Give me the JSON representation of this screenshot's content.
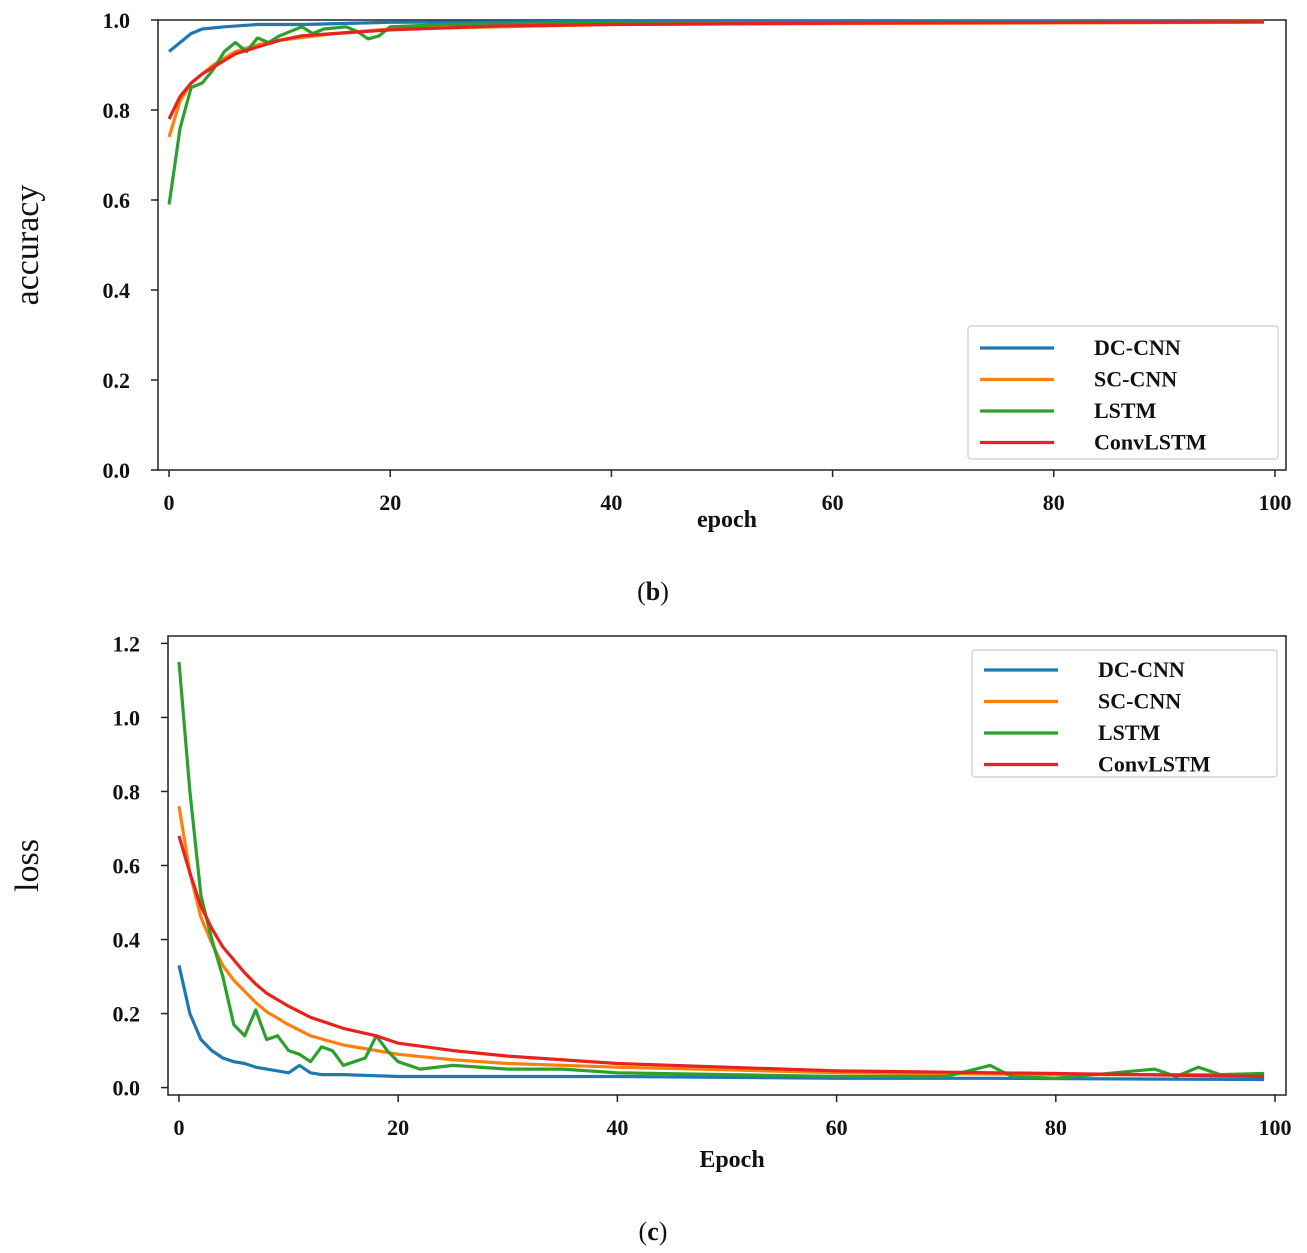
{
  "chart_data": [
    {
      "type": "line",
      "caption_letter": "b",
      "xlabel": "epoch",
      "ylabel": "accuracy",
      "xlim": [
        -1,
        101
      ],
      "ylim": [
        0.0,
        1.0
      ],
      "xticks": [
        0,
        20,
        40,
        60,
        80,
        100
      ],
      "yticks": [
        "0.0",
        "0.2",
        "0.4",
        "0.6",
        "0.8",
        "1.0"
      ],
      "legend_position": "lower-right",
      "series": [
        {
          "name": "DC-CNN",
          "color": "#1f77b4",
          "points": [
            [
              0,
              0.93
            ],
            [
              1,
              0.95
            ],
            [
              2,
              0.97
            ],
            [
              3,
              0.98
            ],
            [
              5,
              0.985
            ],
            [
              8,
              0.99
            ],
            [
              12,
              0.99
            ],
            [
              20,
              0.995
            ],
            [
              40,
              0.997
            ],
            [
              99,
              0.998
            ]
          ]
        },
        {
          "name": "SC-CNN",
          "color": "#ff7f0e",
          "points": [
            [
              0,
              0.74
            ],
            [
              1,
              0.82
            ],
            [
              2,
              0.86
            ],
            [
              3,
              0.88
            ],
            [
              4,
              0.9
            ],
            [
              5,
              0.915
            ],
            [
              6,
              0.93
            ],
            [
              8,
              0.945
            ],
            [
              10,
              0.955
            ],
            [
              15,
              0.97
            ],
            [
              20,
              0.98
            ],
            [
              30,
              0.985
            ],
            [
              40,
              0.99
            ],
            [
              60,
              0.992
            ],
            [
              99,
              0.995
            ]
          ]
        },
        {
          "name": "LSTM",
          "color": "#2ca02c",
          "points": [
            [
              0,
              0.59
            ],
            [
              1,
              0.76
            ],
            [
              2,
              0.85
            ],
            [
              3,
              0.86
            ],
            [
              4,
              0.89
            ],
            [
              5,
              0.93
            ],
            [
              6,
              0.95
            ],
            [
              7,
              0.93
            ],
            [
              8,
              0.96
            ],
            [
              9,
              0.95
            ],
            [
              10,
              0.965
            ],
            [
              11,
              0.975
            ],
            [
              12,
              0.985
            ],
            [
              13,
              0.97
            ],
            [
              14,
              0.98
            ],
            [
              16,
              0.985
            ],
            [
              17,
              0.975
            ],
            [
              18,
              0.958
            ],
            [
              19,
              0.965
            ],
            [
              20,
              0.985
            ],
            [
              25,
              0.99
            ],
            [
              35,
              0.992
            ],
            [
              50,
              0.994
            ],
            [
              74,
              0.995
            ],
            [
              92,
              0.995
            ],
            [
              99,
              0.998
            ]
          ]
        },
        {
          "name": "ConvLSTM",
          "color": "#e8221f",
          "points": [
            [
              0,
              0.78
            ],
            [
              1,
              0.83
            ],
            [
              2,
              0.86
            ],
            [
              3,
              0.88
            ],
            [
              4,
              0.895
            ],
            [
              5,
              0.91
            ],
            [
              6,
              0.925
            ],
            [
              8,
              0.94
            ],
            [
              10,
              0.955
            ],
            [
              12,
              0.965
            ],
            [
              15,
              0.97
            ],
            [
              20,
              0.978
            ],
            [
              30,
              0.987
            ],
            [
              40,
              0.99
            ],
            [
              60,
              0.993
            ],
            [
              99,
              0.996
            ]
          ]
        }
      ]
    },
    {
      "type": "line",
      "caption_letter": "c",
      "xlabel": "Epoch",
      "ylabel": "loss",
      "xlim": [
        -1,
        101
      ],
      "ylim": [
        -0.02,
        1.22
      ],
      "xticks": [
        0,
        20,
        40,
        60,
        80,
        100
      ],
      "yticks": [
        "0.0",
        "0.2",
        "0.4",
        "0.6",
        "0.8",
        "1.0",
        "1.2"
      ],
      "legend_position": "upper-right",
      "series": [
        {
          "name": "DC-CNN",
          "color": "#1f77b4",
          "points": [
            [
              0,
              0.33
            ],
            [
              1,
              0.2
            ],
            [
              2,
              0.13
            ],
            [
              3,
              0.1
            ],
            [
              4,
              0.08
            ],
            [
              5,
              0.07
            ],
            [
              6,
              0.065
            ],
            [
              7,
              0.055
            ],
            [
              8,
              0.05
            ],
            [
              9,
              0.045
            ],
            [
              10,
              0.04
            ],
            [
              11,
              0.06
            ],
            [
              12,
              0.04
            ],
            [
              13,
              0.035
            ],
            [
              15,
              0.035
            ],
            [
              20,
              0.03
            ],
            [
              30,
              0.03
            ],
            [
              40,
              0.03
            ],
            [
              60,
              0.025
            ],
            [
              74,
              0.025
            ],
            [
              99,
              0.022
            ]
          ]
        },
        {
          "name": "SC-CNN",
          "color": "#ff7f0e",
          "points": [
            [
              0,
              0.76
            ],
            [
              1,
              0.58
            ],
            [
              2,
              0.46
            ],
            [
              3,
              0.39
            ],
            [
              4,
              0.33
            ],
            [
              5,
              0.29
            ],
            [
              6,
              0.26
            ],
            [
              7,
              0.23
            ],
            [
              8,
              0.205
            ],
            [
              10,
              0.17
            ],
            [
              12,
              0.14
            ],
            [
              15,
              0.115
            ],
            [
              20,
              0.09
            ],
            [
              25,
              0.075
            ],
            [
              30,
              0.065
            ],
            [
              40,
              0.055
            ],
            [
              50,
              0.048
            ],
            [
              60,
              0.04
            ],
            [
              80,
              0.035
            ],
            [
              99,
              0.035
            ]
          ]
        },
        {
          "name": "LSTM",
          "color": "#2ca02c",
          "points": [
            [
              0,
              1.15
            ],
            [
              1,
              0.8
            ],
            [
              2,
              0.52
            ],
            [
              3,
              0.4
            ],
            [
              4,
              0.3
            ],
            [
              5,
              0.17
            ],
            [
              6,
              0.14
            ],
            [
              7,
              0.21
            ],
            [
              8,
              0.13
            ],
            [
              9,
              0.14
            ],
            [
              10,
              0.1
            ],
            [
              11,
              0.09
            ],
            [
              12,
              0.07
            ],
            [
              13,
              0.11
            ],
            [
              14,
              0.1
            ],
            [
              15,
              0.06
            ],
            [
              16,
              0.07
            ],
            [
              17,
              0.08
            ],
            [
              18,
              0.14
            ],
            [
              19,
              0.1
            ],
            [
              20,
              0.07
            ],
            [
              22,
              0.05
            ],
            [
              25,
              0.06
            ],
            [
              30,
              0.05
            ],
            [
              35,
              0.05
            ],
            [
              40,
              0.04
            ],
            [
              50,
              0.035
            ],
            [
              60,
              0.03
            ],
            [
              70,
              0.03
            ],
            [
              74,
              0.06
            ],
            [
              76,
              0.03
            ],
            [
              80,
              0.025
            ],
            [
              89,
              0.05
            ],
            [
              91,
              0.03
            ],
            [
              93,
              0.055
            ],
            [
              95,
              0.035
            ],
            [
              99,
              0.038
            ]
          ]
        },
        {
          "name": "ConvLSTM",
          "color": "#e8221f",
          "points": [
            [
              0,
              0.68
            ],
            [
              1,
              0.58
            ],
            [
              2,
              0.49
            ],
            [
              3,
              0.43
            ],
            [
              4,
              0.38
            ],
            [
              5,
              0.345
            ],
            [
              6,
              0.31
            ],
            [
              7,
              0.28
            ],
            [
              8,
              0.255
            ],
            [
              10,
              0.22
            ],
            [
              12,
              0.19
            ],
            [
              15,
              0.16
            ],
            [
              18,
              0.14
            ],
            [
              20,
              0.12
            ],
            [
              25,
              0.1
            ],
            [
              30,
              0.085
            ],
            [
              40,
              0.065
            ],
            [
              50,
              0.055
            ],
            [
              60,
              0.045
            ],
            [
              80,
              0.038
            ],
            [
              99,
              0.03
            ]
          ]
        }
      ]
    }
  ]
}
